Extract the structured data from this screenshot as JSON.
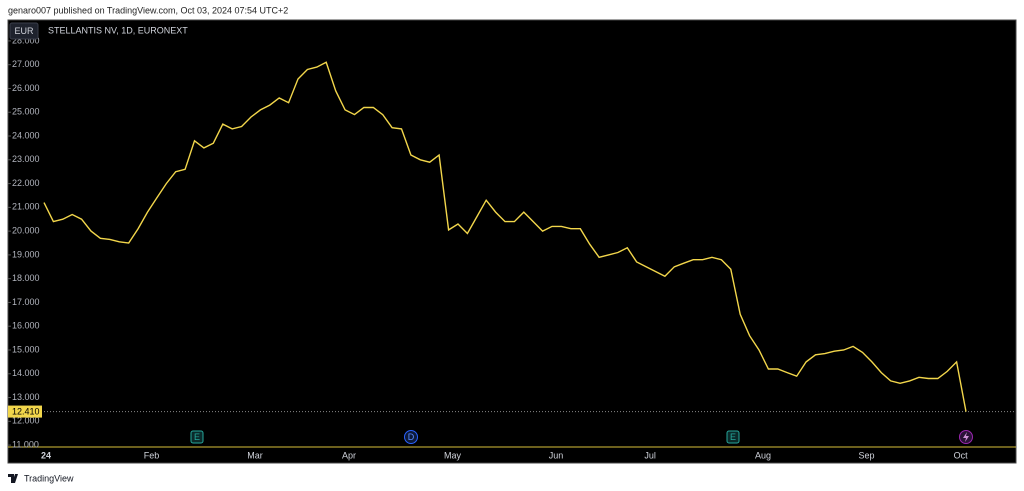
{
  "header": "genaro007 published on TradingView.com, Oct 03, 2024 07:54 UTC+2",
  "currency": "EUR",
  "footer": "TradingView",
  "chart_data": {
    "type": "line",
    "title": "STELLANTIS NV, 1D, EURONEXT",
    "color": "#f2d64b",
    "categories": [
      "24",
      null,
      null,
      null,
      null,
      null,
      null,
      null,
      null,
      null,
      null,
      "Feb",
      null,
      null,
      null,
      null,
      null,
      null,
      null,
      null,
      null,
      null,
      "Mar",
      null,
      null,
      null,
      null,
      null,
      null,
      null,
      null,
      null,
      "Apr",
      null,
      null,
      null,
      null,
      null,
      null,
      null,
      null,
      null,
      null,
      "May",
      null,
      null,
      null,
      null,
      null,
      null,
      null,
      null,
      null,
      null,
      "Jun",
      null,
      null,
      null,
      null,
      null,
      null,
      null,
      null,
      null,
      "Jul",
      null,
      null,
      null,
      null,
      null,
      null,
      null,
      null,
      null,
      null,
      null,
      "Aug",
      null,
      null,
      null,
      null,
      null,
      null,
      null,
      null,
      null,
      null,
      "Sep",
      null,
      null,
      null,
      null,
      null,
      null,
      null,
      null,
      null,
      "Oct",
      null
    ],
    "values": [
      21.2,
      20.4,
      20.5,
      20.7,
      20.5,
      20.0,
      19.7,
      19.65,
      19.55,
      19.5,
      20.1,
      20.8,
      21.4,
      22.0,
      22.5,
      22.6,
      23.8,
      23.5,
      23.7,
      24.5,
      24.3,
      24.4,
      24.8,
      25.1,
      25.3,
      25.6,
      25.4,
      26.4,
      26.8,
      26.9,
      27.1,
      25.9,
      25.1,
      24.9,
      25.2,
      25.2,
      24.9,
      24.35,
      24.3,
      23.2,
      23.0,
      22.9,
      23.2,
      20.05,
      20.3,
      19.9,
      20.6,
      21.3,
      20.8,
      20.4,
      20.4,
      20.8,
      20.4,
      20.0,
      20.2,
      20.2,
      20.1,
      20.1,
      19.45,
      18.9,
      19.0,
      19.1,
      19.3,
      18.7,
      18.5,
      18.3,
      18.1,
      18.5,
      18.65,
      18.8,
      18.8,
      18.9,
      18.8,
      18.4,
      16.5,
      15.6,
      15.0,
      14.2,
      14.2,
      14.05,
      13.9,
      14.5,
      14.8,
      14.85,
      14.95,
      15.0,
      15.15,
      14.9,
      14.5,
      14.05,
      13.7,
      13.6,
      13.7,
      13.85,
      13.8,
      13.8,
      14.1,
      14.5,
      12.41
    ],
    "ylim": [
      10.92,
      28.88
    ],
    "yticks": [
      {
        "value": 11,
        "label": "11.000"
      },
      {
        "value": 12,
        "label": "12.000"
      },
      {
        "value": 13,
        "label": "13.000"
      },
      {
        "value": 14,
        "label": "14.000"
      },
      {
        "value": 15,
        "label": "15.000"
      },
      {
        "value": 16,
        "label": "16.000"
      },
      {
        "value": 17,
        "label": "17.000"
      },
      {
        "value": 18,
        "label": "18.000"
      },
      {
        "value": 19,
        "label": "19.000"
      },
      {
        "value": 20,
        "label": "20.000"
      },
      {
        "value": 21,
        "label": "21.000"
      },
      {
        "value": 22,
        "label": "22.000"
      },
      {
        "value": 23,
        "label": "23.000"
      },
      {
        "value": 24,
        "label": "24.000"
      },
      {
        "value": 25,
        "label": "25.000"
      },
      {
        "value": 26,
        "label": "26.000"
      },
      {
        "value": 27,
        "label": "27.000"
      },
      {
        "value": 28,
        "label": "28.000"
      }
    ],
    "grid": false,
    "last_price": {
      "value": 12.41,
      "label": "12.410"
    },
    "events": [
      "E",
      "D",
      "E"
    ]
  }
}
